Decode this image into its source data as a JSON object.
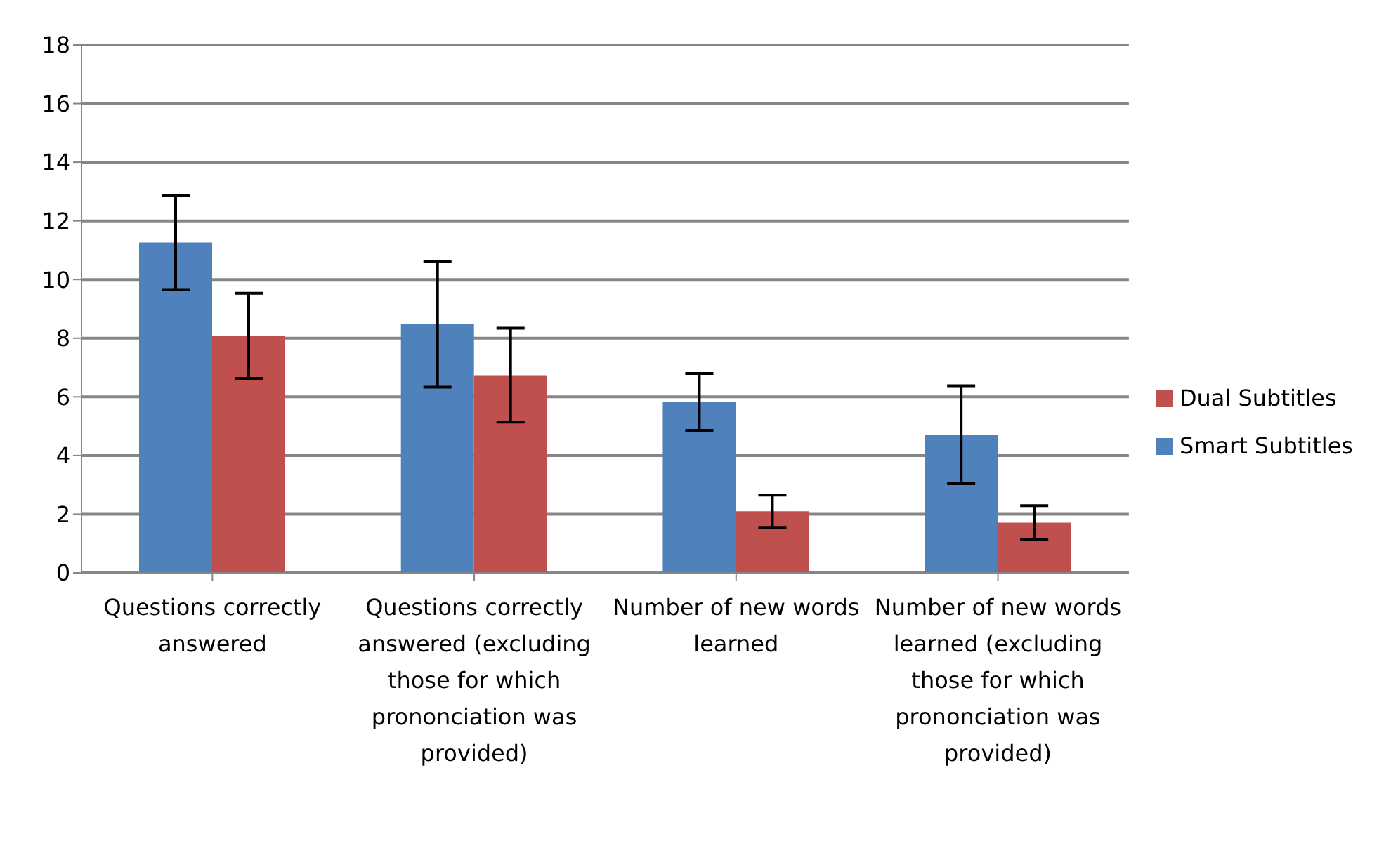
{
  "chart_data": {
    "type": "bar",
    "categories": [
      "Questions correctly answered",
      "Questions correctly answered (excluding those for which prononciation was provided)",
      "Number of new words learned",
      "Number of new words learned (excluding those for which prononciation was provided)"
    ],
    "series": [
      {
        "name": "Smart Subtitles",
        "color": "#4f81bd",
        "values": [
          11.26,
          8.48,
          5.83,
          4.71
        ],
        "errors": [
          1.6,
          2.15,
          0.97,
          1.67
        ]
      },
      {
        "name": "Dual Subtitles",
        "color": "#c0504d",
        "values": [
          8.08,
          6.74,
          2.1,
          1.71
        ],
        "errors": [
          1.45,
          1.6,
          0.55,
          0.58
        ]
      }
    ],
    "ylim": [
      0,
      18
    ],
    "yticks": [
      0,
      2,
      4,
      6,
      8,
      10,
      12,
      14,
      16,
      18
    ],
    "grid": "y",
    "legend": "right"
  }
}
